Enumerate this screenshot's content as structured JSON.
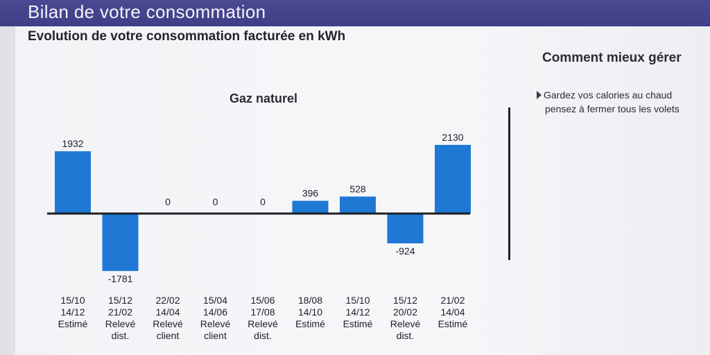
{
  "header": {
    "banner_title": "Bilan de votre consommation",
    "subtitle": "Evolution de votre consommation facturée en kWh"
  },
  "side": {
    "title": "Comment mieux gérer",
    "tip_line1": "Gardez vos calories au chaud",
    "tip_line2": "pensez à fermer tous les volets"
  },
  "colors": {
    "bar": "#1f78d4",
    "banner": "#43428a"
  },
  "chart_data": {
    "type": "bar",
    "title": "Gaz naturel",
    "xlabel": "",
    "ylabel": "",
    "ylim": [
      -1781,
      2130
    ],
    "grid": false,
    "categories": [
      [
        "15/10",
        "14/12",
        "Estimé"
      ],
      [
        "15/12",
        "21/02",
        "Relevé",
        "dist."
      ],
      [
        "22/02",
        "14/04",
        "Relevé",
        "client"
      ],
      [
        "15/04",
        "14/06",
        "Relevé",
        "client"
      ],
      [
        "15/06",
        "17/08",
        "Relevé",
        "dist."
      ],
      [
        "18/08",
        "14/10",
        "Estimé"
      ],
      [
        "15/10",
        "14/12",
        "Estimé"
      ],
      [
        "15/12",
        "20/02",
        "Relevé",
        "dist."
      ],
      [
        "21/02",
        "14/04",
        "Estimé"
      ]
    ],
    "values": [
      1932,
      -1781,
      0,
      0,
      0,
      396,
      528,
      -924,
      2130
    ],
    "value_labels": [
      "1932",
      "-1781",
      "0",
      "0",
      "0",
      "396",
      "528",
      "-924",
      "2130"
    ]
  }
}
